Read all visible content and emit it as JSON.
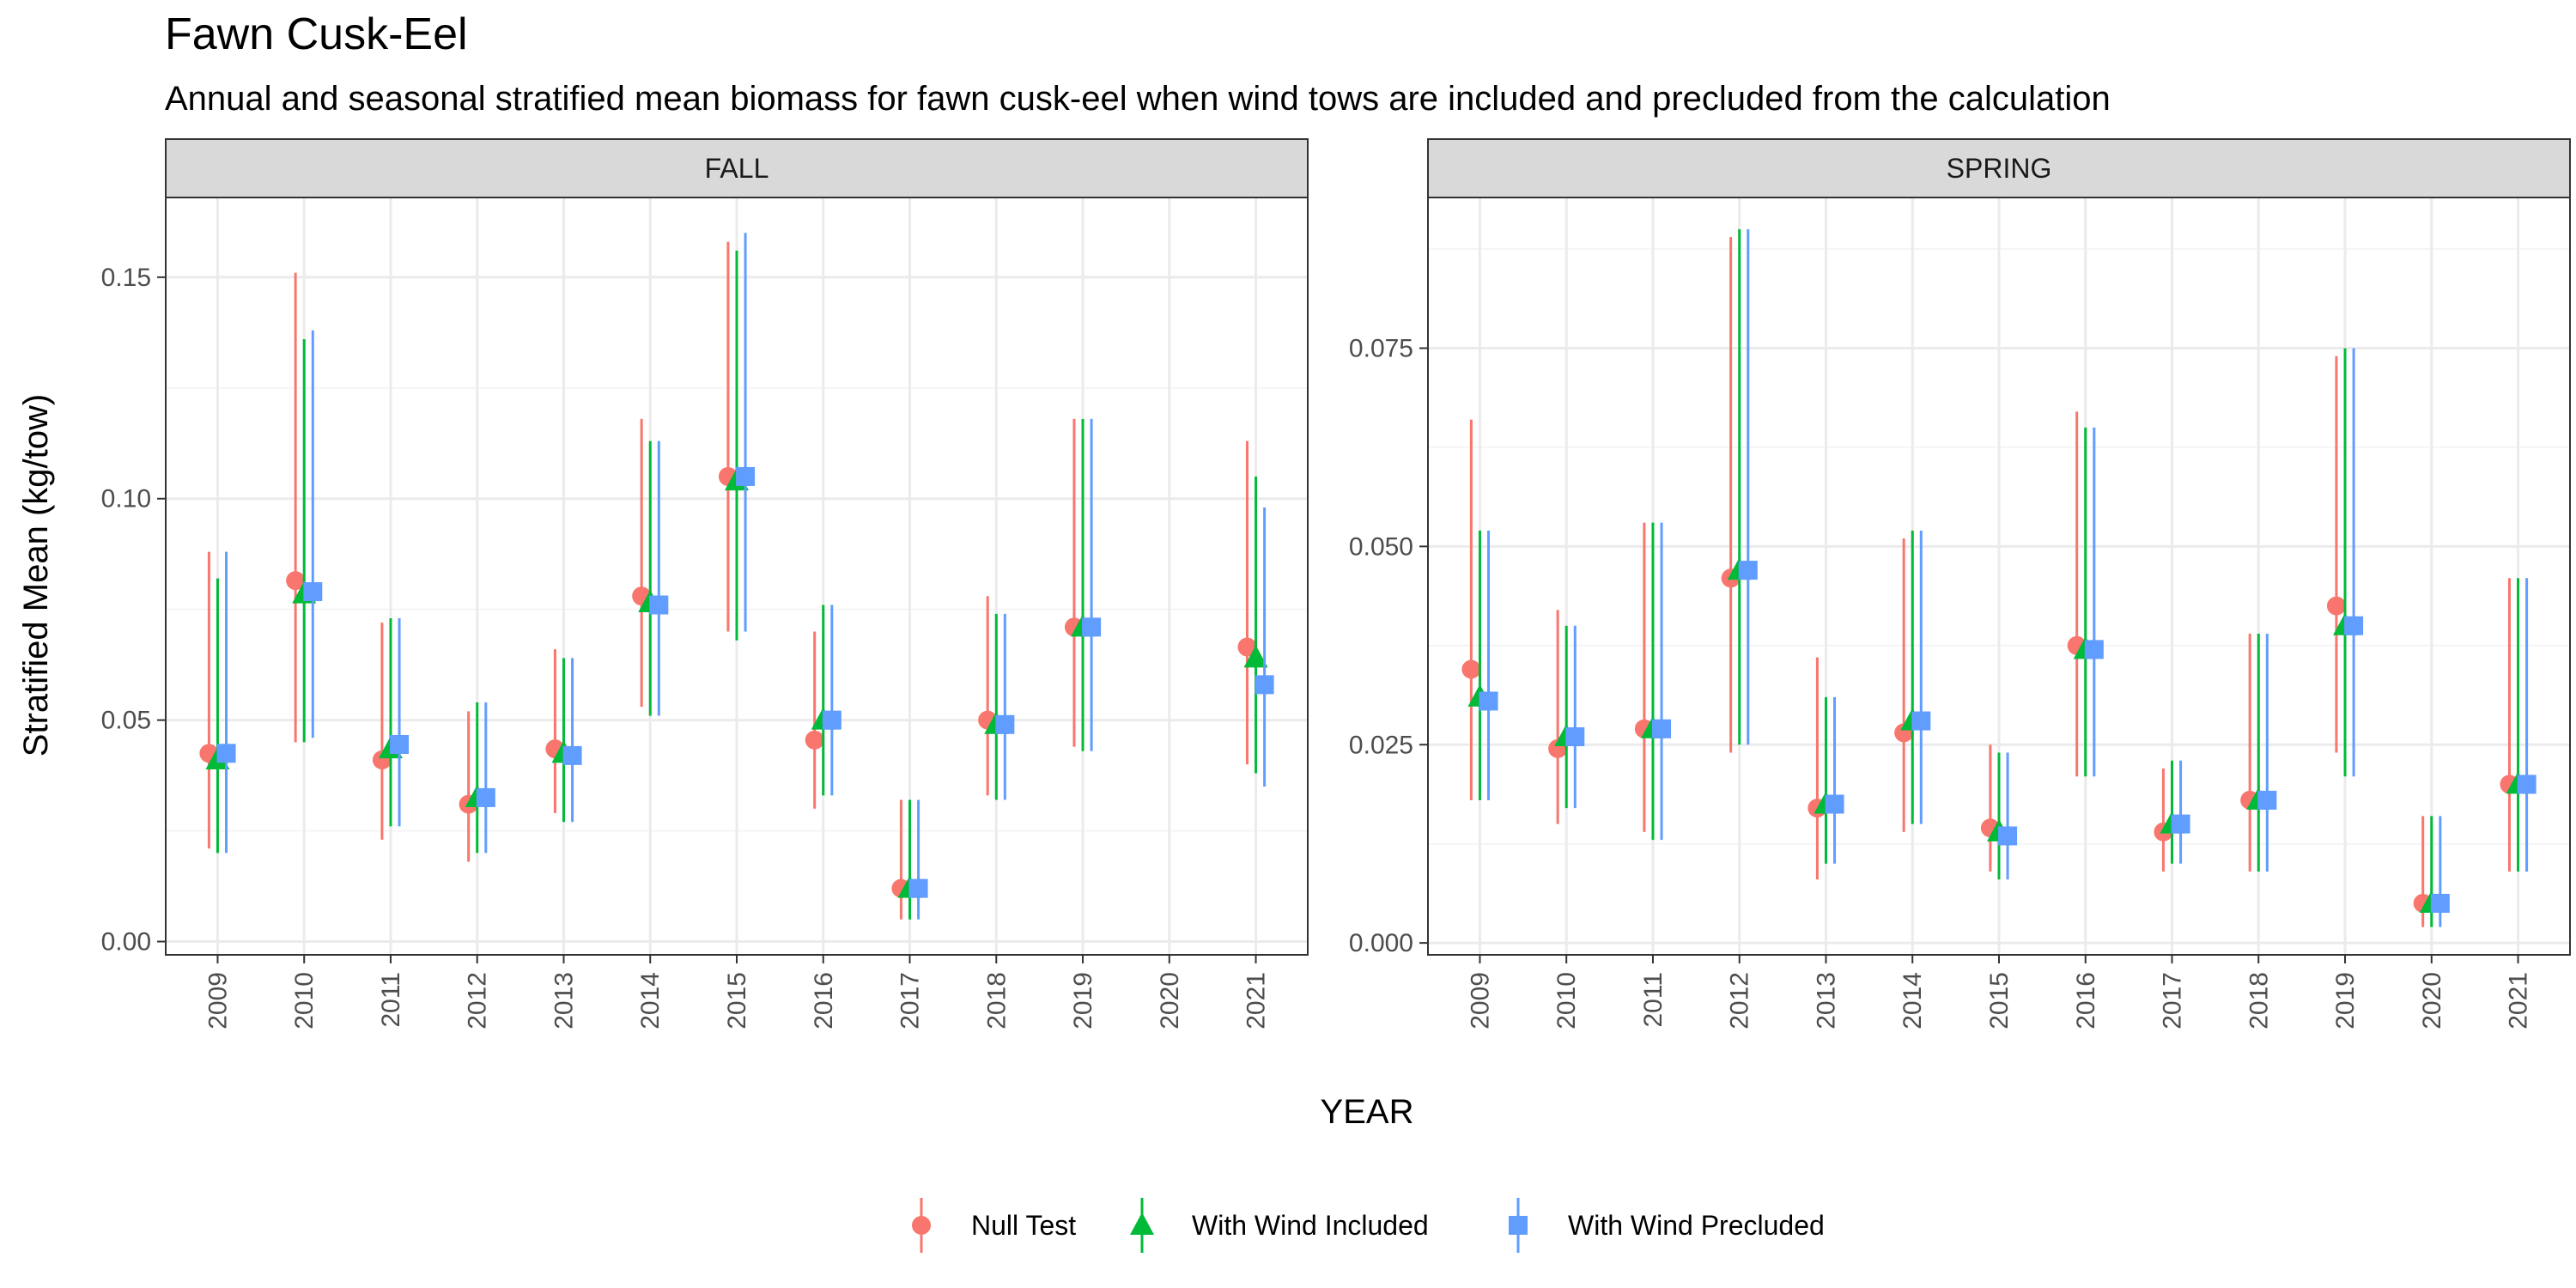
{
  "title": "Fawn Cusk-Eel",
  "subtitle": "Annual and seasonal stratified mean biomass for fawn cusk-eel when wind tows are included and precluded from the calculation",
  "colors": {
    "Null Test": "#F8766D",
    "With Wind Included": "#00BA38",
    "With Wind Precluded": "#619CFF"
  },
  "chart_data": {
    "type": "scatter",
    "xlabel": "YEAR",
    "ylabel": "Stratified Mean (kg/tow)",
    "legend_position": "bottom",
    "grid": true,
    "series_names": [
      "Null Test",
      "With Wind Included",
      "With Wind Precluded"
    ],
    "series_shapes": [
      "circle",
      "triangle",
      "square"
    ],
    "panels": [
      {
        "name": "FALL",
        "years": [
          "2009",
          "2010",
          "2011",
          "2012",
          "2013",
          "2014",
          "2015",
          "2016",
          "2017",
          "2018",
          "2019",
          "2020",
          "2021"
        ],
        "ylim": [
          -0.003,
          0.168
        ],
        "yticks": [
          0.0,
          0.05,
          0.1,
          0.15
        ],
        "ytick_labels": [
          "0.00",
          "0.05",
          "0.10",
          "0.15"
        ],
        "series": [
          {
            "name": "Null Test",
            "mean": [
              0.0425,
              0.0815,
              0.041,
              0.031,
              0.0435,
              0.078,
              0.105,
              0.0455,
              0.012,
              0.05,
              0.071,
              null,
              0.0665
            ],
            "lower": [
              0.021,
              0.045,
              0.023,
              0.018,
              0.029,
              0.053,
              0.07,
              0.03,
              0.005,
              0.033,
              0.044,
              null,
              0.04
            ],
            "upper": [
              0.088,
              0.151,
              0.072,
              0.052,
              0.066,
              0.118,
              0.158,
              0.07,
              0.032,
              0.078,
              0.118,
              null,
              0.113
            ]
          },
          {
            "name": "With Wind Included",
            "mean": [
              0.041,
              0.0785,
              0.0435,
              0.0325,
              0.0425,
              0.0765,
              0.104,
              0.05,
              0.012,
              0.049,
              0.071,
              null,
              0.064
            ],
            "lower": [
              0.02,
              0.045,
              0.026,
              0.02,
              0.027,
              0.051,
              0.068,
              0.033,
              0.005,
              0.032,
              0.043,
              null,
              0.038
            ],
            "upper": [
              0.082,
              0.136,
              0.073,
              0.054,
              0.064,
              0.113,
              0.156,
              0.076,
              0.032,
              0.074,
              0.118,
              null,
              0.105
            ]
          },
          {
            "name": "With Wind Precluded",
            "mean": [
              0.0425,
              0.079,
              0.0445,
              0.0325,
              0.042,
              0.076,
              0.105,
              0.05,
              0.012,
              0.049,
              0.071,
              null,
              0.058
            ],
            "lower": [
              0.02,
              0.046,
              0.026,
              0.02,
              0.027,
              0.051,
              0.07,
              0.033,
              0.005,
              0.032,
              0.043,
              null,
              0.035
            ],
            "upper": [
              0.088,
              0.138,
              0.073,
              0.054,
              0.064,
              0.113,
              0.16,
              0.076,
              0.032,
              0.074,
              0.118,
              null,
              0.098
            ]
          }
        ]
      },
      {
        "name": "SPRING",
        "years": [
          "2009",
          "2010",
          "2011",
          "2012",
          "2013",
          "2014",
          "2015",
          "2016",
          "2017",
          "2018",
          "2019",
          "2020",
          "2021"
        ],
        "ylim": [
          -0.0015,
          0.094
        ],
        "yticks": [
          0.0,
          0.025,
          0.05,
          0.075
        ],
        "ytick_labels": [
          "0.000",
          "0.025",
          "0.050",
          "0.075"
        ],
        "series": [
          {
            "name": "Null Test",
            "mean": [
              0.0345,
              0.0245,
              0.027,
              0.046,
              0.017,
              0.0265,
              0.0145,
              0.0375,
              0.014,
              0.018,
              0.0425,
              0.005,
              0.02
            ],
            "lower": [
              0.018,
              0.015,
              0.014,
              0.024,
              0.008,
              0.014,
              0.009,
              0.021,
              0.009,
              0.009,
              0.024,
              0.002,
              0.009
            ],
            "upper": [
              0.066,
              0.042,
              0.053,
              0.089,
              0.036,
              0.051,
              0.025,
              0.067,
              0.022,
              0.039,
              0.074,
              0.016,
              0.046
            ]
          },
          {
            "name": "With Wind Included",
            "mean": [
              0.031,
              0.026,
              0.027,
              0.047,
              0.0175,
              0.028,
              0.014,
              0.037,
              0.015,
              0.018,
              0.04,
              0.005,
              0.02
            ],
            "lower": [
              0.018,
              0.017,
              0.013,
              0.025,
              0.01,
              0.015,
              0.008,
              0.021,
              0.01,
              0.009,
              0.021,
              0.002,
              0.009
            ],
            "upper": [
              0.052,
              0.04,
              0.053,
              0.09,
              0.031,
              0.052,
              0.024,
              0.065,
              0.023,
              0.039,
              0.075,
              0.016,
              0.046
            ]
          },
          {
            "name": "With Wind Precluded",
            "mean": [
              0.0305,
              0.026,
              0.027,
              0.047,
              0.0175,
              0.028,
              0.0135,
              0.037,
              0.015,
              0.018,
              0.04,
              0.005,
              0.02
            ],
            "lower": [
              0.018,
              0.017,
              0.013,
              0.025,
              0.01,
              0.015,
              0.008,
              0.021,
              0.01,
              0.009,
              0.021,
              0.002,
              0.009
            ],
            "upper": [
              0.052,
              0.04,
              0.053,
              0.09,
              0.031,
              0.052,
              0.024,
              0.065,
              0.023,
              0.039,
              0.075,
              0.016,
              0.046
            ]
          }
        ]
      }
    ]
  }
}
